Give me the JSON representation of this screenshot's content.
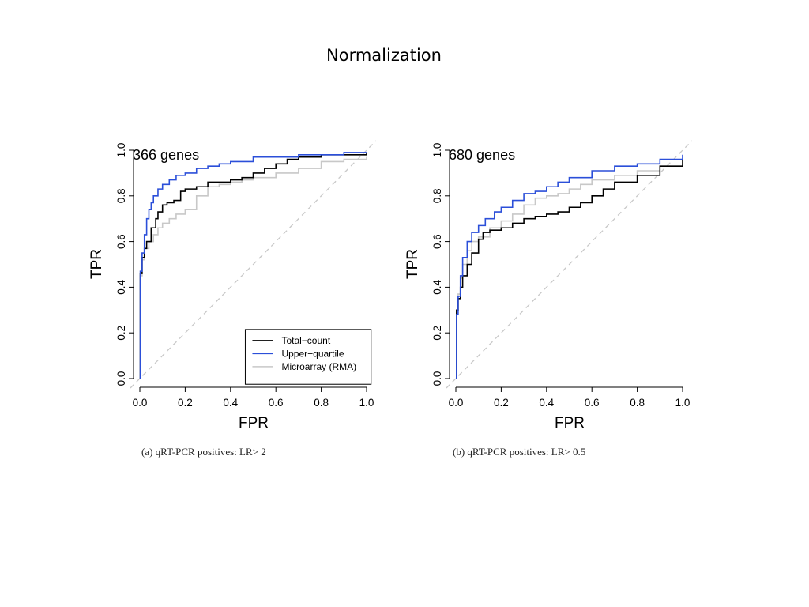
{
  "slide_title": "Normalization",
  "colors": {
    "total_count": "#000000",
    "upper_quartile": "#2b4fd9",
    "microarray": "#c8c8c8",
    "diagonal": "#c8c8c8"
  },
  "chart_data": [
    {
      "type": "line",
      "panel": "a",
      "annotation": "366 genes",
      "xlabel": "FPR",
      "ylabel": "TPR",
      "xlim": [
        0,
        1
      ],
      "ylim": [
        0,
        1
      ],
      "xticks": [
        "0.0",
        "0.2",
        "0.4",
        "0.6",
        "0.8",
        "1.0"
      ],
      "yticks": [
        "0.0",
        "0.2",
        "0.4",
        "0.6",
        "0.8",
        "1.0"
      ],
      "caption": "(a) qRT-PCR positives: LR> 2",
      "legend_position": "bottom-right",
      "diagonal": true,
      "series": [
        {
          "name": "Total−count",
          "color": "#000000",
          "x": [
            0,
            0.002,
            0.01,
            0.02,
            0.03,
            0.05,
            0.07,
            0.08,
            0.1,
            0.12,
            0.15,
            0.18,
            0.2,
            0.25,
            0.3,
            0.35,
            0.4,
            0.45,
            0.5,
            0.55,
            0.6,
            0.65,
            0.7,
            0.8,
            0.9,
            1.0
          ],
          "y": [
            0,
            0.46,
            0.53,
            0.57,
            0.6,
            0.66,
            0.7,
            0.73,
            0.76,
            0.77,
            0.78,
            0.82,
            0.83,
            0.84,
            0.86,
            0.86,
            0.87,
            0.88,
            0.9,
            0.92,
            0.94,
            0.96,
            0.97,
            0.98,
            0.98,
            0.99
          ]
        },
        {
          "name": "Upper−quartile",
          "color": "#2b4fd9",
          "x": [
            0,
            0.002,
            0.01,
            0.02,
            0.03,
            0.04,
            0.05,
            0.06,
            0.08,
            0.1,
            0.13,
            0.16,
            0.2,
            0.25,
            0.3,
            0.35,
            0.4,
            0.5,
            0.6,
            0.7,
            0.8,
            0.9,
            1.0
          ],
          "y": [
            0,
            0.47,
            0.55,
            0.63,
            0.7,
            0.74,
            0.77,
            0.8,
            0.83,
            0.85,
            0.87,
            0.89,
            0.9,
            0.92,
            0.93,
            0.94,
            0.95,
            0.97,
            0.97,
            0.98,
            0.98,
            0.99,
            0.99
          ]
        },
        {
          "name": "Microarray (RMA)",
          "color": "#c8c8c8",
          "x": [
            0,
            0.002,
            0.01,
            0.02,
            0.04,
            0.06,
            0.08,
            0.1,
            0.13,
            0.16,
            0.2,
            0.25,
            0.3,
            0.35,
            0.4,
            0.45,
            0.5,
            0.6,
            0.7,
            0.8,
            0.9,
            1.0
          ],
          "y": [
            0,
            0.45,
            0.52,
            0.57,
            0.6,
            0.63,
            0.66,
            0.68,
            0.7,
            0.72,
            0.74,
            0.8,
            0.84,
            0.85,
            0.86,
            0.87,
            0.88,
            0.9,
            0.92,
            0.95,
            0.96,
            0.97
          ]
        }
      ]
    },
    {
      "type": "line",
      "panel": "b",
      "annotation": "680 genes",
      "xlabel": "FPR",
      "ylabel": "TPR",
      "xlim": [
        0,
        1
      ],
      "ylim": [
        0,
        1
      ],
      "xticks": [
        "0.0",
        "0.2",
        "0.4",
        "0.6",
        "0.8",
        "1.0"
      ],
      "yticks": [
        "0.0",
        "0.2",
        "0.4",
        "0.6",
        "0.8",
        "1.0"
      ],
      "caption": "(b) qRT-PCR positives: LR> 0.5",
      "diagonal": true,
      "series": [
        {
          "name": "Total−count",
          "color": "#000000",
          "x": [
            0,
            0.003,
            0.01,
            0.02,
            0.03,
            0.05,
            0.07,
            0.1,
            0.12,
            0.15,
            0.2,
            0.25,
            0.3,
            0.35,
            0.4,
            0.45,
            0.5,
            0.55,
            0.6,
            0.65,
            0.7,
            0.8,
            0.9,
            1.0
          ],
          "y": [
            0,
            0.3,
            0.35,
            0.4,
            0.45,
            0.5,
            0.55,
            0.61,
            0.64,
            0.65,
            0.66,
            0.68,
            0.7,
            0.71,
            0.72,
            0.73,
            0.75,
            0.77,
            0.8,
            0.83,
            0.86,
            0.89,
            0.93,
            0.96
          ]
        },
        {
          "name": "Upper−quartile",
          "color": "#2b4fd9",
          "x": [
            0,
            0.003,
            0.01,
            0.02,
            0.03,
            0.05,
            0.07,
            0.1,
            0.13,
            0.17,
            0.2,
            0.25,
            0.3,
            0.35,
            0.4,
            0.45,
            0.5,
            0.6,
            0.7,
            0.8,
            0.9,
            1.0
          ],
          "y": [
            0,
            0.28,
            0.36,
            0.45,
            0.53,
            0.6,
            0.64,
            0.67,
            0.7,
            0.73,
            0.75,
            0.78,
            0.81,
            0.82,
            0.84,
            0.86,
            0.88,
            0.91,
            0.93,
            0.94,
            0.96,
            0.98
          ]
        },
        {
          "name": "Microarray (RMA)",
          "color": "#c8c8c8",
          "x": [
            0,
            0.003,
            0.01,
            0.02,
            0.03,
            0.05,
            0.07,
            0.1,
            0.15,
            0.2,
            0.25,
            0.3,
            0.35,
            0.4,
            0.45,
            0.5,
            0.55,
            0.6,
            0.7,
            0.8,
            0.9,
            1.0
          ],
          "y": [
            0,
            0.3,
            0.37,
            0.44,
            0.5,
            0.56,
            0.6,
            0.62,
            0.66,
            0.69,
            0.72,
            0.76,
            0.79,
            0.8,
            0.81,
            0.83,
            0.85,
            0.87,
            0.89,
            0.91,
            0.93,
            0.94
          ]
        }
      ]
    }
  ]
}
